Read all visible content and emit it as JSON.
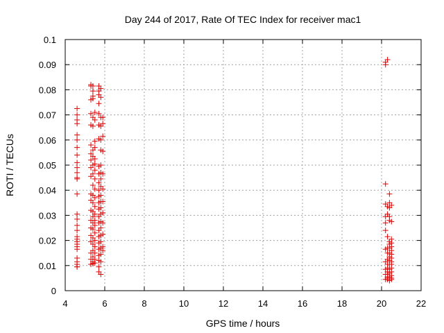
{
  "chart_data": {
    "type": "scatter",
    "title": "Day 244 of 2017, Rate Of TEC Index for receiver mac1",
    "xlabel": "GPS time / hours",
    "ylabel": "ROTI / TECUs",
    "xlim": [
      4,
      22
    ],
    "ylim": [
      0,
      0.1
    ],
    "x_ticks": [
      4,
      6,
      8,
      10,
      12,
      14,
      16,
      18,
      20,
      22
    ],
    "x_tick_labels": [
      "4",
      "6",
      "8",
      "10",
      "12",
      "14",
      "16",
      "18",
      "20",
      "22"
    ],
    "y_ticks": [
      0,
      0.01,
      0.02,
      0.03,
      0.04,
      0.05,
      0.06,
      0.07,
      0.08,
      0.09,
      0.1
    ],
    "y_tick_labels": [
      "0",
      "0.01",
      "0.02",
      "0.03",
      "0.04",
      "0.05",
      "0.06",
      "0.07",
      "0.08",
      "0.09",
      "0.1"
    ],
    "grid": true,
    "marker": "plus",
    "color": "#e00000",
    "series": [
      {
        "x": [
          4.6,
          4.6,
          4.6,
          4.6,
          4.6,
          4.6,
          4.6,
          4.6,
          4.6,
          4.6,
          4.6,
          4.6,
          4.6,
          4.6,
          4.6,
          4.6,
          4.6,
          4.6,
          4.6,
          4.6,
          4.6,
          4.6,
          4.6,
          4.6,
          4.6,
          4.6,
          4.6,
          4.6,
          4.6,
          5.3,
          5.3,
          5.3,
          5.3,
          5.3,
          5.3,
          5.3,
          5.3,
          5.3,
          5.3,
          5.3,
          5.3,
          5.3,
          5.3,
          5.3,
          5.3,
          5.3,
          5.3,
          5.3,
          5.3,
          5.4,
          5.4,
          5.4,
          5.4,
          5.4,
          5.4,
          5.4,
          5.4,
          5.4,
          5.4,
          5.4,
          5.4,
          5.4,
          5.4,
          5.4,
          5.4,
          5.4,
          5.4,
          5.4,
          5.4,
          5.4,
          5.4,
          5.4,
          5.4,
          5.5,
          5.5,
          5.5,
          5.5,
          5.5,
          5.5,
          5.5,
          5.5,
          5.5,
          5.5,
          5.5,
          5.5,
          5.5,
          5.5,
          5.5,
          5.5,
          5.5,
          5.5,
          5.5,
          5.5,
          5.7,
          5.7,
          5.7,
          5.7,
          5.7,
          5.7,
          5.7,
          5.7,
          5.7,
          5.7,
          5.7,
          5.7,
          5.7,
          5.7,
          5.7,
          5.7,
          5.7,
          5.7,
          5.7,
          5.7,
          5.7,
          5.7,
          5.7,
          5.7,
          5.8,
          5.8,
          5.8,
          5.8,
          5.8,
          5.8,
          5.8,
          5.8,
          5.8,
          5.8,
          5.8,
          5.8,
          5.8,
          5.8,
          5.8,
          5.8,
          5.8,
          5.8,
          5.8,
          5.8,
          5.8,
          5.8,
          5.9,
          5.9,
          5.9,
          5.9,
          5.9,
          5.9,
          5.9,
          5.9,
          5.9,
          5.9,
          5.9,
          5.9,
          20.2,
          20.2,
          20.2,
          20.2,
          20.2,
          20.2,
          20.2,
          20.2,
          20.2,
          20.2,
          20.2,
          20.2,
          20.3,
          20.3,
          20.3,
          20.3,
          20.3,
          20.3,
          20.3,
          20.3,
          20.3,
          20.3,
          20.3,
          20.3,
          20.3,
          20.3,
          20.4,
          20.4,
          20.4,
          20.4,
          20.4,
          20.4,
          20.4,
          20.4,
          20.4,
          20.4,
          20.4,
          20.4,
          20.4,
          20.4,
          20.4,
          20.4,
          20.5,
          20.5,
          20.5,
          20.5,
          20.5,
          20.5,
          20.5,
          20.5,
          20.5,
          20.5,
          20.5,
          20.5,
          20.5,
          20.5,
          20.5
        ],
        "y": [
          0.0725,
          0.07,
          0.068,
          0.0665,
          0.062,
          0.06,
          0.057,
          0.054,
          0.051,
          0.049,
          0.047,
          0.045,
          0.0445,
          0.0385,
          0.0305,
          0.0285,
          0.026,
          0.024,
          0.0215,
          0.0205,
          0.0195,
          0.0185,
          0.0175,
          0.0165,
          0.013,
          0.0115,
          0.0105,
          0.0095,
          0.0095,
          0.082,
          0.0815,
          0.076,
          0.0705,
          0.066,
          0.058,
          0.0545,
          0.052,
          0.049,
          0.0455,
          0.0385,
          0.036,
          0.032,
          0.028,
          0.025,
          0.022,
          0.0195,
          0.015,
          0.0125,
          0.0105,
          0.0815,
          0.0795,
          0.0775,
          0.0765,
          0.069,
          0.0655,
          0.056,
          0.0535,
          0.05,
          0.0465,
          0.042,
          0.038,
          0.035,
          0.0315,
          0.0295,
          0.027,
          0.0245,
          0.021,
          0.0185,
          0.016,
          0.0135,
          0.0115,
          0.0108,
          0.0108,
          0.071,
          0.068,
          0.0595,
          0.057,
          0.0525,
          0.0505,
          0.048,
          0.0445,
          0.0405,
          0.037,
          0.0335,
          0.0305,
          0.028,
          0.026,
          0.023,
          0.02,
          0.0175,
          0.015,
          0.0125,
          0.011,
          0.0815,
          0.0795,
          0.078,
          0.0745,
          0.0705,
          0.066,
          0.0605,
          0.0495,
          0.0465,
          0.043,
          0.04,
          0.0375,
          0.035,
          0.0325,
          0.0295,
          0.027,
          0.024,
          0.0215,
          0.019,
          0.0165,
          0.014,
          0.012,
          0.0095,
          0.0075,
          0.0805,
          0.077,
          0.069,
          0.0655,
          0.06,
          0.056,
          0.05,
          0.047,
          0.0445,
          0.0415,
          0.038,
          0.0355,
          0.033,
          0.0305,
          0.0275,
          0.025,
          0.022,
          0.0195,
          0.017,
          0.0145,
          0.0115,
          0.0065,
          0.069,
          0.0665,
          0.0615,
          0.0555,
          0.0465,
          0.0405,
          0.0355,
          0.031,
          0.027,
          0.0225,
          0.0175,
          0.016,
          0.091,
          0.09,
          0.0425,
          0.0345,
          0.0295,
          0.027,
          0.024,
          0.0165,
          0.0115,
          0.0085,
          0.0065,
          0.0045,
          0.092,
          0.0335,
          0.0305,
          0.0215,
          0.017,
          0.015,
          0.0125,
          0.0105,
          0.009,
          0.0075,
          0.0065,
          0.0055,
          0.005,
          0.0045,
          0.0385,
          0.035,
          0.033,
          0.0295,
          0.028,
          0.0195,
          0.0185,
          0.017,
          0.015,
          0.0135,
          0.012,
          0.0105,
          0.0085,
          0.007,
          0.0055,
          0.004,
          0.034,
          0.0275,
          0.0205,
          0.019,
          0.0175,
          0.016,
          0.0145,
          0.013,
          0.0115,
          0.0105,
          0.009,
          0.0075,
          0.006,
          0.005,
          0.0045
        ]
      }
    ]
  }
}
